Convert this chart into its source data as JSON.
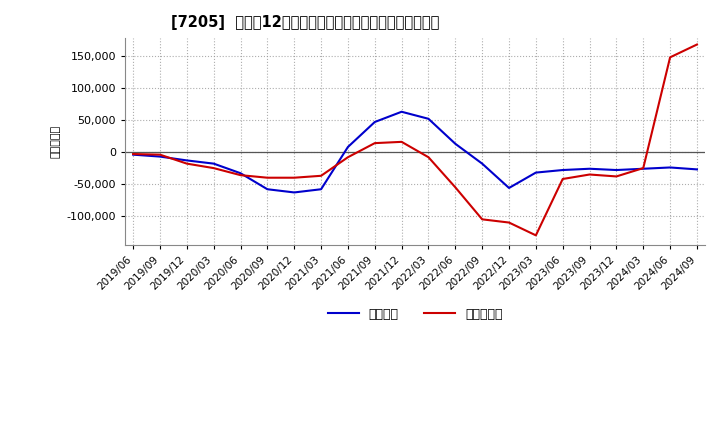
{
  "title": "[7205]  利益だ12か月移動合計の対前年同期増減額の推移",
  "ylabel": "（百万円）",
  "legend_labels": [
    "経常利益",
    "当期純利益"
  ],
  "line_colors": [
    "#0000cc",
    "#cc0000"
  ],
  "background_color": "#ffffff",
  "plot_bg_color": "#ffffff",
  "grid_color": "#999999",
  "ylim": [
    -145000,
    178000
  ],
  "yticks": [
    -100000,
    -50000,
    0,
    50000,
    100000,
    150000
  ],
  "dates": [
    "2019/06",
    "2019/09",
    "2019/12",
    "2020/03",
    "2020/06",
    "2020/09",
    "2020/12",
    "2021/03",
    "2021/06",
    "2021/09",
    "2021/12",
    "2022/03",
    "2022/06",
    "2022/09",
    "2022/12",
    "2023/03",
    "2023/06",
    "2023/09",
    "2023/12",
    "2024/03",
    "2024/06",
    "2024/09"
  ],
  "operating_profit": [
    -4000,
    -7000,
    -13000,
    -18000,
    -33000,
    -58000,
    -63000,
    -58000,
    8000,
    47000,
    63000,
    52000,
    13000,
    -18000,
    -56000,
    -32000,
    -28000,
    -26000,
    -28000,
    -26000,
    -24000,
    -27000
  ],
  "net_profit": [
    -3000,
    -4000,
    -18000,
    -25000,
    -36000,
    -40000,
    -40000,
    -37000,
    -8000,
    14000,
    16000,
    -8000,
    -55000,
    -105000,
    -110000,
    -130000,
    -42000,
    -35000,
    -38000,
    -25000,
    148000,
    168000
  ]
}
